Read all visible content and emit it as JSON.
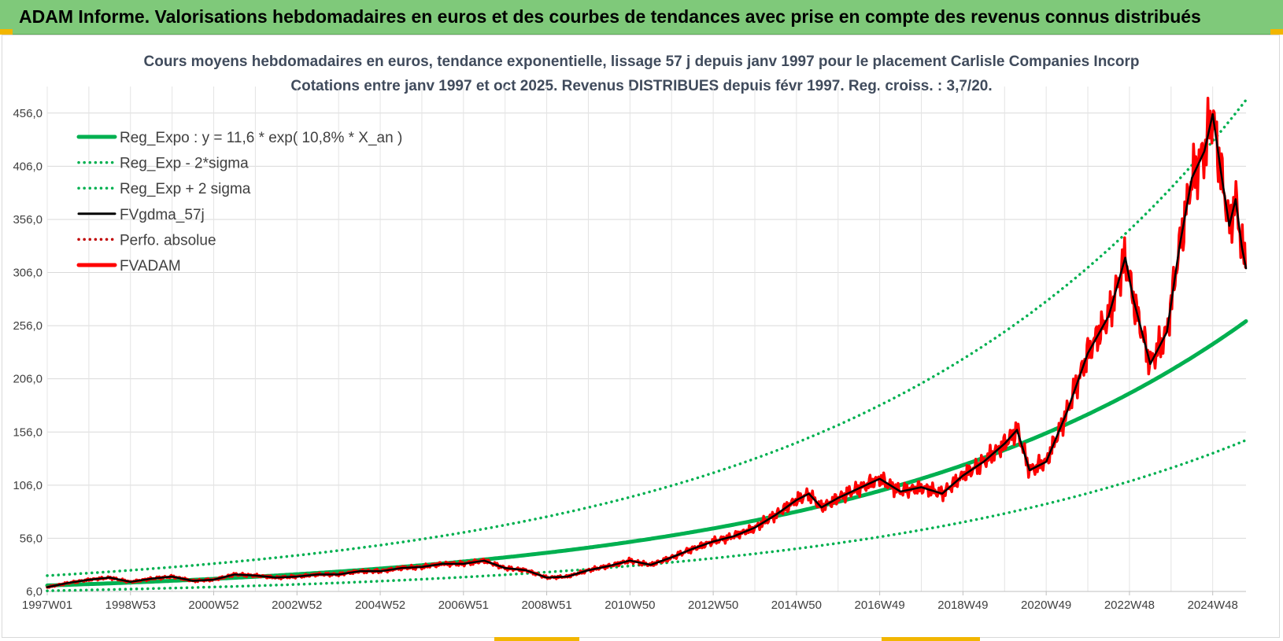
{
  "header": {
    "title": "ADAM Informe. Valorisations hebdomadaires en euros et des courbes de tendances avec prise en compte des revenus connus distribués"
  },
  "chart_data": {
    "type": "line",
    "title": "Cours moyens hebdomadaires en euros, tendance exponentielle, lissage 57 j depuis janv 1997 pour le placement Carlisle Companies Incorp",
    "subtitle": "Cotations entre janv 1997 et oct 2025. Revenus DISTRIBUES depuis févr 1997. Reg. croiss. : 3,7/20.",
    "xlabel": "",
    "ylabel": "",
    "x_range": [
      1997.0,
      2025.8
    ],
    "ylim": [
      6,
      481
    ],
    "yticks": [
      "6,0",
      "56,0",
      "106,0",
      "156,0",
      "206,0",
      "256,0",
      "306,0",
      "356,0",
      "406,0",
      "456,0"
    ],
    "ytick_values": [
      6,
      56,
      106,
      156,
      206,
      256,
      306,
      356,
      406,
      456
    ],
    "xticks": [
      "1997W01",
      "1998W53",
      "2000W52",
      "2002W52",
      "2004W52",
      "2006W51",
      "2008W51",
      "2010W50",
      "2012W50",
      "2014W50",
      "2016W49",
      "2018W49",
      "2020W49",
      "2022W48",
      "2024W48"
    ],
    "xtick_values": [
      1997.0,
      1999.0,
      2001.0,
      2003.0,
      2005.0,
      2007.0,
      2009.0,
      2011.0,
      2013.0,
      2015.0,
      2017.0,
      2019.0,
      2021.0,
      2023.0,
      2025.0
    ],
    "grid": true,
    "legend_position": "top-left",
    "regression": {
      "a": 11.6,
      "rate": 0.108,
      "x0": 1997.0,
      "sigma_factor_low": 0.57,
      "sigma_factor_high": 1.8
    },
    "series": [
      {
        "name": "Reg_Expo : y = 11,6 * exp( 10,8% *  X_an )",
        "color": "#00b050",
        "style": "solid-thick",
        "kind": "reg"
      },
      {
        "name": "Reg_Exp - 2*sigma",
        "color": "#00b050",
        "style": "dotted",
        "kind": "reg_low"
      },
      {
        "name": "Reg_Exp + 2 sigma",
        "color": "#00b050",
        "style": "dotted",
        "kind": "reg_high"
      },
      {
        "name": "FVgdma_57j",
        "color": "#000000",
        "style": "solid",
        "kind": "smooth"
      },
      {
        "name": "Perfo. absolue",
        "color": "#c00000",
        "style": "dotted",
        "kind": "none"
      },
      {
        "name": "FVADAM",
        "color": "#ff0000",
        "style": "solid-thick",
        "kind": "price"
      }
    ],
    "price_points": [
      [
        1997.0,
        10
      ],
      [
        1997.5,
        14
      ],
      [
        1998.0,
        17
      ],
      [
        1998.5,
        19
      ],
      [
        1999.0,
        15
      ],
      [
        1999.5,
        18
      ],
      [
        2000.0,
        20
      ],
      [
        2000.5,
        16
      ],
      [
        2001.0,
        17
      ],
      [
        2001.5,
        22
      ],
      [
        2002.0,
        21
      ],
      [
        2002.5,
        19
      ],
      [
        2003.0,
        20
      ],
      [
        2003.5,
        22
      ],
      [
        2004.0,
        22
      ],
      [
        2004.5,
        25
      ],
      [
        2005.0,
        25
      ],
      [
        2005.5,
        28
      ],
      [
        2006.0,
        29
      ],
      [
        2006.5,
        32
      ],
      [
        2007.0,
        32
      ],
      [
        2007.5,
        35
      ],
      [
        2008.0,
        28
      ],
      [
        2008.5,
        26
      ],
      [
        2009.0,
        19
      ],
      [
        2009.5,
        20
      ],
      [
        2010.0,
        26
      ],
      [
        2010.5,
        30
      ],
      [
        2011.0,
        35
      ],
      [
        2011.5,
        31
      ],
      [
        2012.0,
        38
      ],
      [
        2012.5,
        46
      ],
      [
        2013.0,
        53
      ],
      [
        2013.5,
        58
      ],
      [
        2014.0,
        66
      ],
      [
        2014.5,
        78
      ],
      [
        2015.0,
        92
      ],
      [
        2015.3,
        98
      ],
      [
        2015.6,
        85
      ],
      [
        2016.0,
        94
      ],
      [
        2016.5,
        103
      ],
      [
        2017.0,
        112
      ],
      [
        2017.5,
        100
      ],
      [
        2018.0,
        104
      ],
      [
        2018.5,
        98
      ],
      [
        2019.0,
        115
      ],
      [
        2019.5,
        128
      ],
      [
        2020.0,
        145
      ],
      [
        2020.3,
        158
      ],
      [
        2020.6,
        120
      ],
      [
        2021.0,
        128
      ],
      [
        2021.5,
        175
      ],
      [
        2022.0,
        230
      ],
      [
        2022.5,
        265
      ],
      [
        2022.9,
        320
      ],
      [
        2023.1,
        280
      ],
      [
        2023.5,
        220
      ],
      [
        2023.9,
        250
      ],
      [
        2024.2,
        330
      ],
      [
        2024.5,
        395
      ],
      [
        2024.8,
        420
      ],
      [
        2025.0,
        455
      ],
      [
        2025.2,
        400
      ],
      [
        2025.4,
        350
      ],
      [
        2025.55,
        375
      ],
      [
        2025.7,
        330
      ],
      [
        2025.8,
        310
      ]
    ]
  }
}
